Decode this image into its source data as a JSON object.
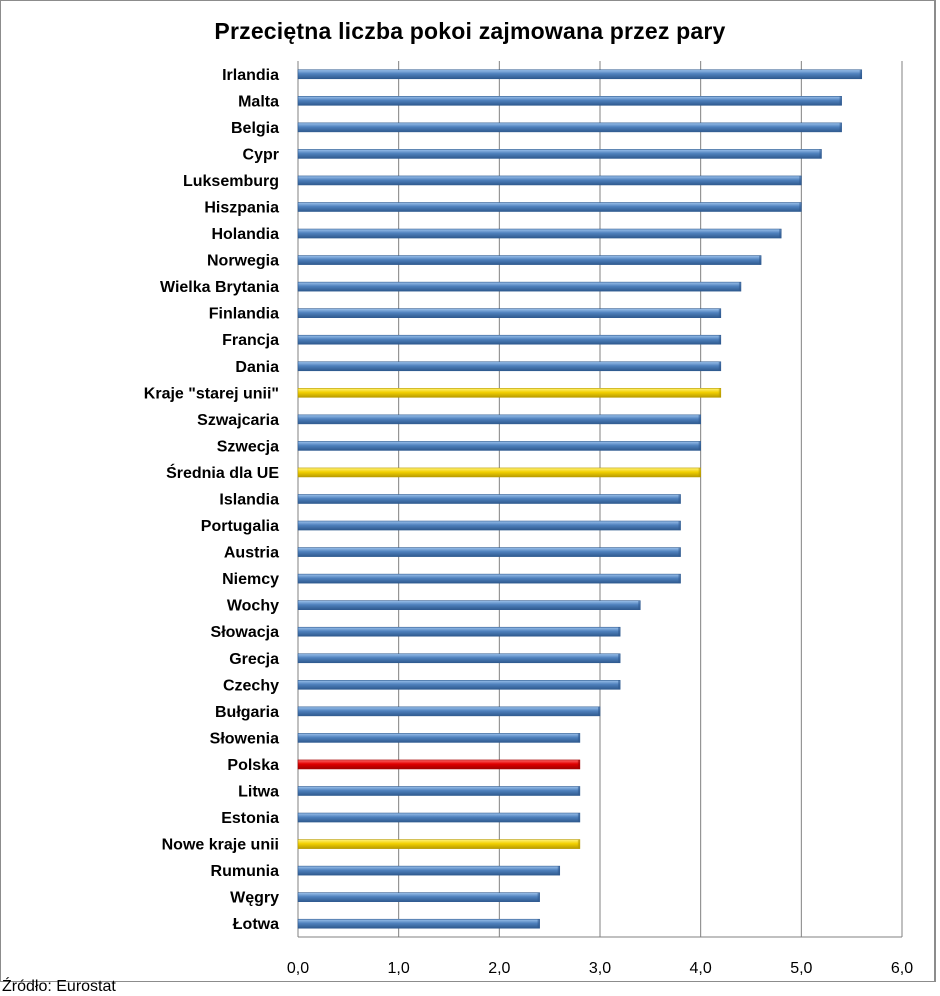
{
  "chart_data": {
    "type": "bar",
    "orientation": "horizontal",
    "title": "Przeciętna liczba pokoi zajmowana przez pary",
    "xlabel": "",
    "ylabel": "",
    "xlim": [
      0,
      6
    ],
    "ticks": [
      "0,0",
      "1,0",
      "2,0",
      "3,0",
      "4,0",
      "5,0",
      "6,0"
    ],
    "tick_values": [
      0,
      1,
      2,
      3,
      4,
      5,
      6
    ],
    "grid": true,
    "categories": [
      "Irlandia",
      "Malta",
      "Belgia",
      "Cypr",
      "Luksemburg",
      "Hiszpania",
      "Holandia",
      "Norwegia",
      "Wielka Brytania",
      "Finlandia",
      "Francja",
      "Dania",
      "Kraje \"starej unii\"",
      "Szwajcaria",
      "Szwecja",
      "Średnia dla UE",
      "Islandia",
      "Portugalia",
      "Austria",
      "Niemcy",
      "Wochy",
      "Słowacja",
      "Grecja",
      "Czechy",
      "Bułgaria",
      "Słowenia",
      "Polska",
      "Litwa",
      "Estonia",
      "Nowe kraje unii",
      "Rumunia",
      "Węgry",
      "Łotwa"
    ],
    "values": [
      5.6,
      5.4,
      5.4,
      5.2,
      5.0,
      5.0,
      4.8,
      4.6,
      4.4,
      4.2,
      4.2,
      4.2,
      4.2,
      4.0,
      4.0,
      4.0,
      3.8,
      3.8,
      3.8,
      3.8,
      3.4,
      3.2,
      3.2,
      3.2,
      3.0,
      2.8,
      2.8,
      2.8,
      2.8,
      2.8,
      2.6,
      2.4,
      2.4
    ],
    "bar_colors": [
      "blue",
      "blue",
      "blue",
      "blue",
      "blue",
      "blue",
      "blue",
      "blue",
      "blue",
      "blue",
      "blue",
      "blue",
      "yellow",
      "blue",
      "blue",
      "yellow",
      "blue",
      "blue",
      "blue",
      "blue",
      "blue",
      "blue",
      "blue",
      "blue",
      "blue",
      "blue",
      "red",
      "blue",
      "blue",
      "yellow",
      "blue",
      "blue",
      "blue"
    ],
    "palette": {
      "blue": {
        "light": "#9cc2ec",
        "mid": "#4f81bd",
        "dark": "#2f5a8f"
      },
      "yellow": {
        "light": "#fff27a",
        "mid": "#f2d000",
        "dark": "#b89b00"
      },
      "red": {
        "light": "#ff6a6a",
        "mid": "#e00000",
        "dark": "#a00000"
      },
      "grid": "#808080"
    }
  },
  "source": "Źródło: Eurostat"
}
